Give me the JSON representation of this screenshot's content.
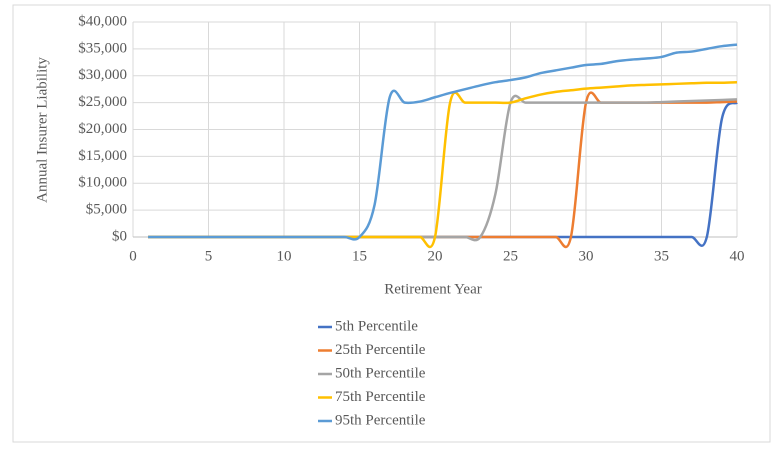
{
  "chart_data": {
    "type": "line",
    "smooth": true,
    "grid": true,
    "x_label": "Retirement Year",
    "y_label": "Annual Insurer Liability",
    "x": [
      1,
      2,
      3,
      4,
      5,
      6,
      7,
      8,
      9,
      10,
      11,
      12,
      13,
      14,
      15,
      16,
      17,
      18,
      19,
      20,
      21,
      22,
      23,
      24,
      25,
      26,
      27,
      28,
      29,
      30,
      31,
      32,
      33,
      34,
      35,
      36,
      37,
      38,
      39,
      40
    ],
    "xlim": [
      0,
      40
    ],
    "xticks": [
      0,
      5,
      10,
      15,
      20,
      25,
      30,
      35,
      40
    ],
    "ylim": [
      0,
      40000
    ],
    "yticks": [
      {
        "value": 0,
        "label": "$0"
      },
      {
        "value": 5000,
        "label": "$5,000"
      },
      {
        "value": 10000,
        "label": "$10,000"
      },
      {
        "value": 15000,
        "label": "$15,000"
      },
      {
        "value": 20000,
        "label": "$20,000"
      },
      {
        "value": 25000,
        "label": "$25,000"
      },
      {
        "value": 30000,
        "label": "$30,000"
      },
      {
        "value": 35000,
        "label": "$35,000"
      },
      {
        "value": 40000,
        "label": "$40,000"
      }
    ],
    "series": [
      {
        "name": "5th Percentile",
        "color": "#4472c4",
        "values": [
          0,
          0,
          0,
          0,
          0,
          0,
          0,
          0,
          0,
          0,
          0,
          0,
          0,
          0,
          0,
          0,
          0,
          0,
          0,
          0,
          0,
          0,
          0,
          0,
          0,
          0,
          0,
          0,
          0,
          0,
          0,
          0,
          0,
          0,
          0,
          0,
          0,
          0,
          22000,
          25000
        ]
      },
      {
        "name": "25th Percentile",
        "color": "#ed7d31",
        "values": [
          0,
          0,
          0,
          0,
          0,
          0,
          0,
          0,
          0,
          0,
          0,
          0,
          0,
          0,
          0,
          0,
          0,
          0,
          0,
          0,
          0,
          0,
          0,
          0,
          0,
          0,
          0,
          0,
          0,
          25000,
          25000,
          25000,
          25000,
          25000,
          25000,
          25000,
          25000,
          25000,
          25100,
          25200
        ]
      },
      {
        "name": "50th Percentile",
        "color": "#a5a5a5",
        "values": [
          0,
          0,
          0,
          0,
          0,
          0,
          0,
          0,
          0,
          0,
          0,
          0,
          0,
          0,
          0,
          0,
          0,
          0,
          0,
          0,
          0,
          0,
          0,
          8000,
          25000,
          25000,
          25000,
          25000,
          25000,
          25000,
          25000,
          25000,
          25000,
          25000,
          25100,
          25200,
          25300,
          25400,
          25500,
          25600
        ]
      },
      {
        "name": "75th Percentile",
        "color": "#ffc000",
        "values": [
          0,
          0,
          0,
          0,
          0,
          0,
          0,
          0,
          0,
          0,
          0,
          0,
          0,
          0,
          0,
          0,
          0,
          0,
          0,
          0,
          25000,
          25000,
          25000,
          25000,
          25000,
          25800,
          26500,
          27000,
          27300,
          27600,
          27800,
          28000,
          28200,
          28300,
          28400,
          28500,
          28600,
          28700,
          28700,
          28800
        ]
      },
      {
        "name": "95th Percentile",
        "color": "#5b9bd5",
        "values": [
          0,
          0,
          0,
          0,
          0,
          0,
          0,
          0,
          0,
          0,
          0,
          0,
          0,
          0,
          0,
          6000,
          26000,
          25000,
          25200,
          26000,
          26800,
          27500,
          28200,
          28800,
          29200,
          29700,
          30500,
          31000,
          31500,
          32000,
          32200,
          32700,
          33000,
          33200,
          33500,
          34300,
          34500,
          35000,
          35500,
          35800
        ]
      }
    ]
  }
}
